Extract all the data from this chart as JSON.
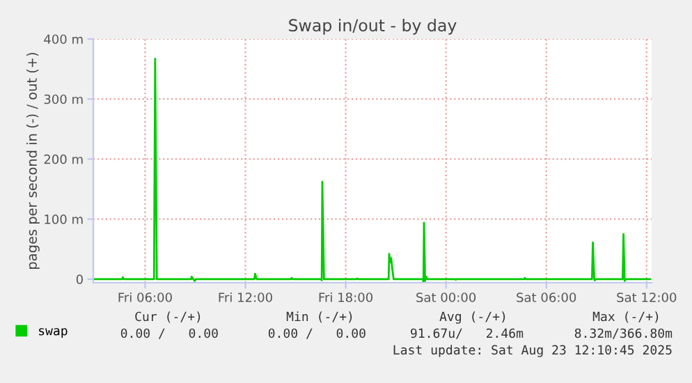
{
  "chart_data": {
    "type": "line",
    "title": "Swap in/out - by day",
    "ylabel": "pages per second in (-) / out (+)",
    "x": [
      "2025-08-22T03:00",
      "2025-08-22T04:37",
      "2025-08-22T04:40",
      "2025-08-22T04:43",
      "2025-08-22T06:32",
      "2025-08-22T06:36",
      "2025-08-22T06:42",
      "2025-08-22T08:45",
      "2025-08-22T08:47",
      "2025-08-22T08:53",
      "2025-08-22T08:58",
      "2025-08-22T09:02",
      "2025-08-22T12:32",
      "2025-08-22T12:35",
      "2025-08-22T12:40",
      "2025-08-22T14:44",
      "2025-08-22T14:46",
      "2025-08-22T14:50",
      "2025-08-22T16:31",
      "2025-08-22T16:34",
      "2025-08-22T16:36",
      "2025-08-22T16:42",
      "2025-08-22T18:39",
      "2025-08-22T18:41",
      "2025-08-22T18:45",
      "2025-08-22T20:34",
      "2025-08-22T20:36",
      "2025-08-22T20:40",
      "2025-08-22T20:43",
      "2025-08-22T20:47",
      "2025-08-22T20:52",
      "2025-08-22T22:37",
      "2025-08-22T22:39",
      "2025-08-22T22:41",
      "2025-08-22T22:45",
      "2025-08-22T22:49",
      "2025-08-22T22:53",
      "2025-08-23T00:32",
      "2025-08-23T00:35",
      "2025-08-23T00:37",
      "2025-08-23T04:41",
      "2025-08-23T04:43",
      "2025-08-23T04:46",
      "2025-08-23T08:44",
      "2025-08-23T08:47",
      "2025-08-23T08:52",
      "2025-08-23T08:54",
      "2025-08-23T08:58",
      "2025-08-23T10:34",
      "2025-08-23T10:37",
      "2025-08-23T10:41",
      "2025-08-23T10:45",
      "2025-08-23T12:12"
    ],
    "series": [
      {
        "name": "swap",
        "color": "#00cc00",
        "values": [
          0,
          0,
          3,
          0,
          0,
          367,
          0,
          0,
          4,
          0,
          -3,
          0,
          0,
          9,
          0,
          0,
          2,
          0,
          0,
          -2,
          162,
          0,
          0,
          1,
          0,
          0,
          42,
          28,
          35,
          18,
          0,
          0,
          -5,
          94,
          -3,
          4,
          0,
          0,
          -1,
          0,
          0,
          2,
          0,
          0,
          61,
          0,
          -2,
          0,
          0,
          75,
          -3,
          0,
          0
        ]
      }
    ],
    "xlim": [
      "2025-08-22T02:54",
      "2025-08-23T12:18"
    ],
    "xticks": [
      {
        "value": "2025-08-22T06:00",
        "label": "Fri 06:00"
      },
      {
        "value": "2025-08-22T12:00",
        "label": "Fri 12:00"
      },
      {
        "value": "2025-08-22T18:00",
        "label": "Fri 18:00"
      },
      {
        "value": "2025-08-23T00:00",
        "label": "Sat 00:00"
      },
      {
        "value": "2025-08-23T06:00",
        "label": "Sat 06:00"
      },
      {
        "value": "2025-08-23T12:00",
        "label": "Sat 12:00"
      }
    ],
    "ylim": [
      -6,
      400
    ],
    "yticks": [
      0,
      {
        "value": 100,
        "label": "100 m"
      },
      {
        "value": 200,
        "label": "200 m"
      },
      {
        "value": 300,
        "label": "300 m"
      },
      {
        "value": 400,
        "label": "400 m"
      }
    ],
    "grid": true,
    "legend": "bottom left",
    "marker": "none",
    "line_style": "solid",
    "annotations": [
      "Cur (-/+)",
      "Min (-/+)",
      "Avg (-/+)",
      "Max (-/+)",
      "0.00 /   0.00",
      "0.00 /   0.00",
      "91.67u/   2.46m",
      "8.32m/366.80m",
      "Last update: Sat Aug 23 12:10:45 2025"
    ]
  }
}
